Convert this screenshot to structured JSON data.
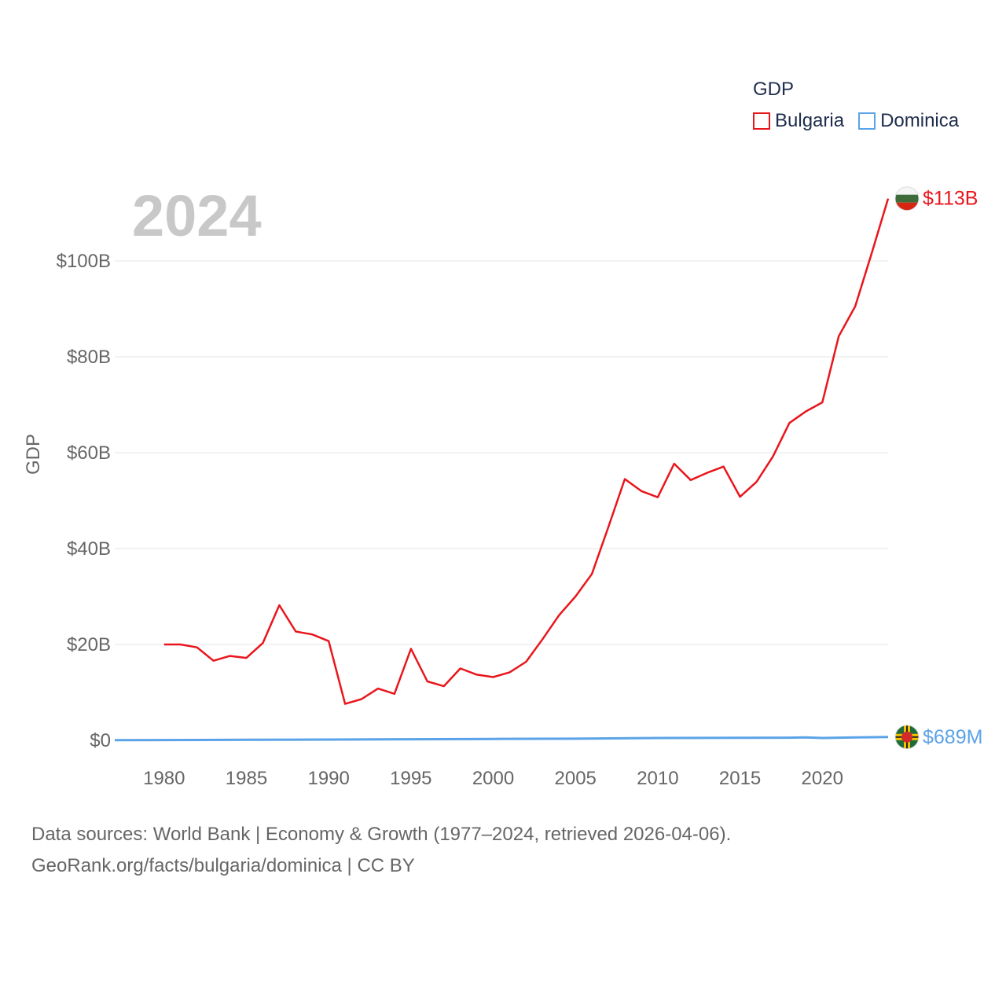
{
  "legend": {
    "title": "GDP",
    "items": [
      {
        "label": "Bulgaria"
      },
      {
        "label": "Dominica"
      }
    ]
  },
  "footer": {
    "line1": "Data sources: World Bank | Economy & Growth (1977–2024, retrieved 2026-04-06).",
    "line2": "GeoRank.org/facts/bulgaria/dominica | CC BY"
  },
  "chart_data": {
    "type": "line",
    "title": "GDP",
    "year_label": "2024",
    "xlabel": "",
    "ylabel": "GDP",
    "unit": "USD billions",
    "xlim": [
      1977,
      2024
    ],
    "ylim": [
      0,
      113
    ],
    "x_ticks": [
      1980,
      1985,
      1990,
      1995,
      2000,
      2005,
      2010,
      2015,
      2020
    ],
    "y_ticks": [
      {
        "value": 0,
        "label": "$0"
      },
      {
        "value": 20,
        "label": "$20B"
      },
      {
        "value": 40,
        "label": "$40B"
      },
      {
        "value": 60,
        "label": "$60B"
      },
      {
        "value": 80,
        "label": "$80B"
      },
      {
        "value": 100,
        "label": "$100B"
      }
    ],
    "grid": true,
    "legend_position": "top-right",
    "series": [
      {
        "name": "Bulgaria",
        "color": "#e8161c",
        "end_label": "$113B",
        "flag": "bulgaria-flag",
        "x": [
          1980,
          1981,
          1982,
          1983,
          1984,
          1985,
          1986,
          1987,
          1988,
          1989,
          1990,
          1991,
          1992,
          1993,
          1994,
          1995,
          1996,
          1997,
          1998,
          1999,
          2000,
          2001,
          2002,
          2003,
          2004,
          2005,
          2006,
          2007,
          2008,
          2009,
          2010,
          2011,
          2012,
          2013,
          2014,
          2015,
          2016,
          2017,
          2018,
          2019,
          2020,
          2021,
          2022,
          2023,
          2024
        ],
        "values": [
          20.0,
          20.0,
          19.4,
          16.6,
          17.6,
          17.2,
          20.3,
          28.2,
          22.7,
          22.1,
          20.7,
          7.6,
          8.6,
          10.8,
          9.7,
          19.1,
          12.3,
          11.3,
          15.0,
          13.7,
          13.2,
          14.2,
          16.4,
          21.1,
          26.1,
          30.0,
          34.7,
          44.5,
          54.5,
          52.0,
          50.7,
          57.7,
          54.3,
          55.8,
          57.1,
          50.8,
          53.9,
          59.2,
          66.2,
          68.6,
          70.5,
          84.3,
          90.5,
          101.6,
          113.0
        ]
      },
      {
        "name": "Dominica",
        "color": "#5ba3e8",
        "end_label": "$689M",
        "flag": "dominica-flag",
        "x": [
          1977,
          1980,
          1985,
          1990,
          1995,
          2000,
          2005,
          2010,
          2015,
          2018,
          2019,
          2020,
          2021,
          2022,
          2023,
          2024
        ],
        "values": [
          0.05,
          0.07,
          0.11,
          0.17,
          0.23,
          0.29,
          0.34,
          0.49,
          0.54,
          0.55,
          0.61,
          0.5,
          0.55,
          0.6,
          0.65,
          0.689
        ]
      }
    ]
  }
}
